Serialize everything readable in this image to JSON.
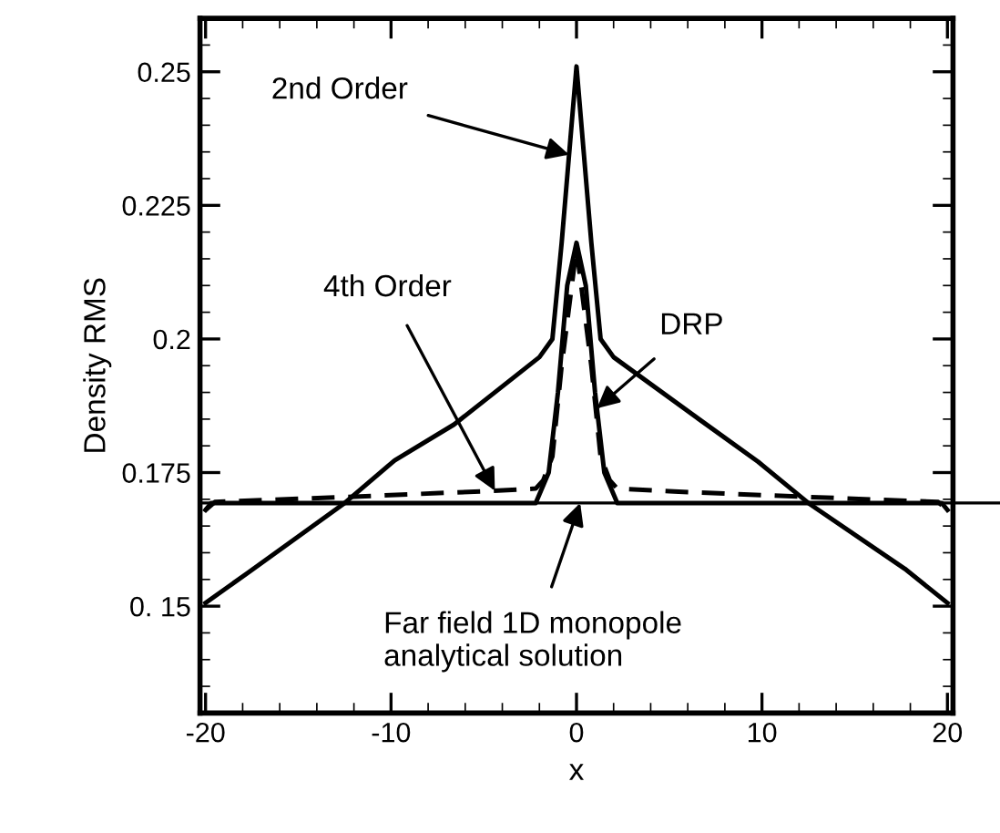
{
  "chart_data": {
    "type": "line",
    "xlabel": "x",
    "ylabel": "Density RMS",
    "xlim": [
      -20.3,
      20.3
    ],
    "ylim": [
      0.13,
      0.26
    ],
    "xticks": [
      -20,
      -10,
      0,
      10,
      20
    ],
    "yticks": [
      {
        "value": 0.15,
        "label": "0. 15"
      },
      0.175,
      0.2,
      0.225,
      0.25
    ],
    "grid": false,
    "marker": "none",
    "series": [
      {
        "color": "#000000",
        "line_style": "solid",
        "x": [
          -20,
          -17.7,
          -12.5,
          -9.8,
          -6.6,
          -2,
          -1.3,
          -0.8,
          0,
          0.8,
          1.3,
          2,
          6.6,
          9.8,
          12.5,
          17.7,
          20
        ],
        "values": [
          0.1506,
          0.1563,
          0.1693,
          0.1773,
          0.184,
          0.1966,
          0.2,
          0.218,
          0.251,
          0.218,
          0.2,
          0.1966,
          0.185,
          0.177,
          0.1693,
          0.157,
          0.1506
        ]
      },
      {
        "color": "#000000",
        "line_style": "dashed",
        "x": [
          -20,
          -19.5,
          -12,
          -5,
          -2.2,
          -1.8,
          -1.3,
          -0.8,
          0,
          0.8,
          1.3,
          1.8,
          2.2,
          5,
          12,
          19.5,
          20
        ],
        "values": [
          0.168,
          0.1695,
          0.1705,
          0.1715,
          0.172,
          0.1735,
          0.178,
          0.195,
          0.217,
          0.195,
          0.178,
          0.1735,
          0.172,
          0.1715,
          0.1705,
          0.1695,
          0.168
        ]
      },
      {
        "color": "#000000",
        "line_style": "solid",
        "x": [
          -20,
          -19.7,
          -2.2,
          -1.5,
          -1,
          -0.5,
          0,
          0.5,
          1,
          1.5,
          2.2,
          19.7,
          20
        ],
        "values": [
          0.168,
          0.1693,
          0.1693,
          0.175,
          0.19,
          0.21,
          0.218,
          0.21,
          0.19,
          0.175,
          0.1693,
          0.1693,
          0.168
        ]
      }
    ],
    "ref_lines": [
      {
        "axis": "y",
        "value": 0.1693,
        "color": "#000000",
        "line_style": "solid"
      }
    ],
    "annotations": [
      {
        "text": "2nd Order",
        "x": -0.4,
        "y": 0.2345
      },
      {
        "text": "4th Order",
        "x": -4.4,
        "y": 0.1716
      },
      {
        "text": "DRP",
        "x": 1.1,
        "y": 0.187
      },
      {
        "text": "Far field 1D monopole\nanalytical solution",
        "x": 0.2,
        "y": 0.1693
      }
    ]
  }
}
